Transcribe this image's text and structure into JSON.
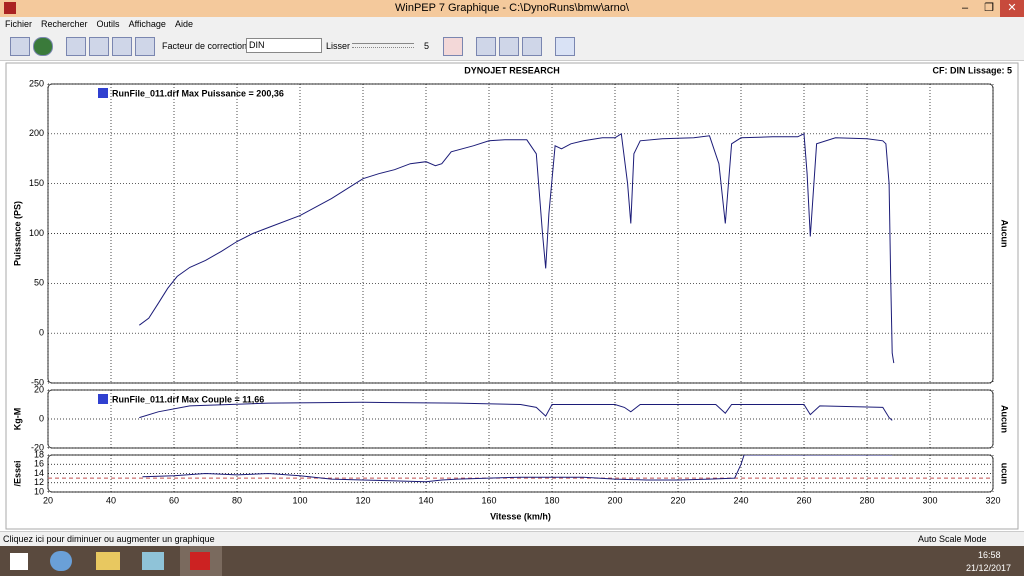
{
  "window": {
    "title": "WinPEP 7    Graphique - C:\\DynoRuns\\bmw\\arno\\"
  },
  "menu": [
    "Fichier",
    "Rechercher",
    "Outils",
    "Affichage",
    "Aide"
  ],
  "toolbar": {
    "correction_label": "Facteur de correction:",
    "correction_value": "DIN",
    "smooth_label": "Lisser",
    "smooth_value": "5"
  },
  "chart_header": {
    "title": "DYNOJET RESEARCH",
    "info": "CF: DIN  Lissage: 5"
  },
  "chart_data": [
    {
      "type": "line",
      "y_label": "Puissance (PS)",
      "right_label": "Aucun",
      "ylim": [
        -50,
        250
      ],
      "yticks": [
        -50,
        0,
        50,
        100,
        150,
        200,
        250
      ],
      "grid": true,
      "x": [
        49,
        52,
        55,
        58,
        61,
        65,
        70,
        75,
        80,
        85,
        90,
        100,
        110,
        120,
        125,
        130,
        135,
        140,
        143,
        145,
        148,
        155,
        160,
        165,
        172,
        175,
        177,
        178,
        179,
        181,
        183,
        186,
        190,
        196,
        200,
        202,
        204,
        205,
        206,
        208,
        215,
        225,
        230,
        233,
        235,
        237,
        240,
        250,
        258,
        260,
        261,
        262,
        264,
        270,
        280,
        285,
        286,
        287,
        287.5,
        288,
        288.5
      ],
      "series": [
        {
          "name": "RunFile_011.drf Max Puissance = 200,36",
          "color": "#1c1c78",
          "values": [
            8,
            15,
            30,
            45,
            57,
            66,
            73,
            82,
            92,
            100,
            106,
            118,
            135,
            155,
            160,
            164,
            170,
            172,
            168,
            170,
            182,
            188,
            193,
            194,
            194,
            180,
            100,
            65,
            120,
            188,
            185,
            190,
            193,
            196,
            196,
            200,
            150,
            110,
            180,
            193,
            195,
            196,
            198,
            170,
            110,
            190,
            196,
            197,
            197,
            200,
            160,
            97,
            190,
            196,
            195,
            193,
            190,
            150,
            60,
            -20,
            -30
          ]
        }
      ]
    },
    {
      "type": "line",
      "y_label": "Kg-M",
      "right_label": "Aucun",
      "ylim": [
        -20,
        20
      ],
      "yticks": [
        -20,
        0,
        20
      ],
      "grid": true,
      "x": [
        49,
        55,
        65,
        90,
        120,
        150,
        170,
        175,
        178,
        180,
        200,
        203,
        205,
        208,
        232,
        235,
        237,
        260,
        262,
        265,
        285,
        287,
        288
      ],
      "series": [
        {
          "name": "RunFile_011.drf Max Couple = 11,66",
          "color": "#1c1c78",
          "values": [
            1,
            5,
            9,
            11,
            11.5,
            11,
            10,
            8,
            2,
            10,
            10,
            8,
            5,
            10,
            10,
            4,
            10,
            10,
            3,
            9,
            8,
            1,
            -1
          ]
        }
      ]
    },
    {
      "type": "line",
      "y_label": "/Essei",
      "right_label": "ucun",
      "x_label": "Vitesse (km/h)",
      "xlim": [
        20,
        320
      ],
      "xticks": [
        20,
        40,
        60,
        80,
        100,
        120,
        140,
        160,
        180,
        200,
        220,
        240,
        260,
        280,
        300,
        320
      ],
      "ylim": [
        10,
        18
      ],
      "yticks": [
        10,
        12,
        14,
        16,
        18
      ],
      "grid": true,
      "reference": {
        "value": 13,
        "color": "#c05050"
      },
      "x": [
        50,
        60,
        70,
        80,
        90,
        100,
        110,
        120,
        130,
        140,
        145,
        150,
        160,
        170,
        180,
        190,
        200,
        210,
        220,
        230,
        238,
        240,
        241,
        288
      ],
      "series": [
        {
          "color": "#1c1c78",
          "values": [
            13.3,
            13.5,
            14,
            13.7,
            14,
            13.5,
            12.8,
            12.6,
            12.4,
            12.2,
            12.6,
            12.8,
            13,
            13.2,
            13.2,
            13.2,
            12.8,
            12.6,
            12.6,
            12.8,
            13,
            16,
            18,
            18
          ]
        }
      ]
    }
  ],
  "status": {
    "hint": "Cliquez ici pour diminuer ou augmenter un graphique",
    "mode": "Auto Scale Mode"
  },
  "taskbar": {
    "time": "16:58",
    "date": "21/12/2017"
  }
}
